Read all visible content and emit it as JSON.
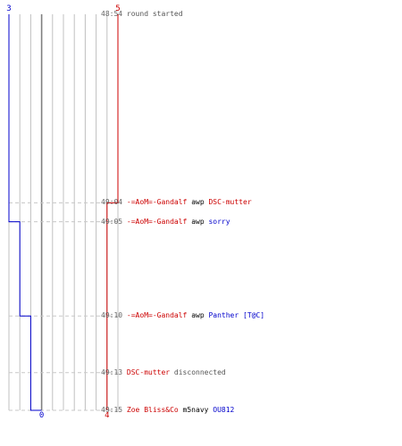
{
  "chart_data": {
    "type": "line",
    "x_label": "",
    "y_label": "",
    "grid": true,
    "lanes": 10,
    "time_range": [
      "48:54",
      "49:15"
    ],
    "series": [
      {
        "color": "#0000cc",
        "start_value": "3",
        "end_value": "0",
        "steps": [
          "48:54",
          "49:05",
          "49:10",
          "49:13",
          "49:15"
        ]
      },
      {
        "color": "#cc0000",
        "start_value": "5",
        "end_value": "4",
        "steps": [
          "48:54",
          "49:04",
          "49:15"
        ]
      }
    ],
    "dashed_times": [
      "49:04",
      "49:05",
      "49:10",
      "49:13",
      "49:15"
    ]
  },
  "events": [
    {
      "time": "48:54",
      "kind": "static",
      "text": "round started"
    },
    {
      "time": "49:04",
      "kind": "frag",
      "actor": "-=AoM=-Gandalf",
      "actor_color": "red",
      "verb": "awp",
      "target": "DSC-mutter",
      "target_color": "red"
    },
    {
      "time": "49:05",
      "kind": "frag",
      "actor": "-=AoM=-Gandalf",
      "actor_color": "red",
      "verb": "awp",
      "target": "sorry",
      "target_color": "blue"
    },
    {
      "time": "49:10",
      "kind": "frag",
      "actor": "-=AoM=-Gandalf",
      "actor_color": "red",
      "verb": "awp",
      "target": "Panther [T@C]",
      "target_color": "blue"
    },
    {
      "time": "49:13",
      "kind": "disconnect",
      "actor": "DSC-mutter",
      "actor_color": "red",
      "verb": "disconnected"
    },
    {
      "time": "49:15",
      "kind": "frag",
      "actor": "Zoe Bliss&Co",
      "actor_color": "red",
      "verb": "m5navy",
      "target": "OU812",
      "target_color": "blue"
    }
  ],
  "colors": {
    "blue_team": "#0000cc",
    "red_team": "#cc0000",
    "grid": "#c0c0c0",
    "center_line": "#808080",
    "dashed": "#c8c8c8",
    "time_text": "#666666"
  }
}
